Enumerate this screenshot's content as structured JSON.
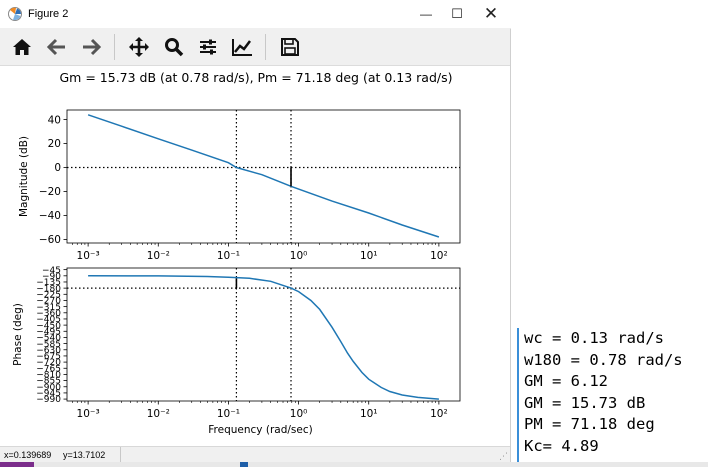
{
  "window": {
    "title": "Figure 2",
    "controls": {
      "minimize": "—",
      "maximize": "☐",
      "close": "✕"
    }
  },
  "toolbar": {
    "buttons": [
      {
        "name": "home",
        "icon": "home-icon"
      },
      {
        "name": "back",
        "icon": "arrow-left-icon"
      },
      {
        "name": "forward",
        "icon": "arrow-right-icon"
      },
      {
        "name": "pan",
        "icon": "move-icon"
      },
      {
        "name": "zoom",
        "icon": "magnifier-icon"
      },
      {
        "name": "subplots",
        "icon": "sliders-icon"
      },
      {
        "name": "axes",
        "icon": "line-chart-icon"
      },
      {
        "name": "save",
        "icon": "floppy-disk-icon"
      }
    ]
  },
  "chart_data": [
    {
      "type": "line",
      "title": "Gm = 15.73 dB (at 0.78 rad/s), Pm = 71.18 deg (at 0.13 rad/s)",
      "xlabel": "",
      "ylabel": "Magnitude (dB)",
      "xscale": "log",
      "xlim": [
        0.0005,
        200
      ],
      "ylim": [
        -63,
        48
      ],
      "yticks": [
        "40",
        "20",
        "0",
        "−20",
        "−40",
        "−60"
      ],
      "ytick_values": [
        40,
        20,
        0,
        -20,
        -40,
        -60
      ],
      "xticks": [
        "10⁻³",
        "10⁻²",
        "10⁻¹",
        "10⁰",
        "10¹",
        "10²"
      ],
      "xtick_values": [
        0.001,
        0.01,
        0.1,
        1,
        10,
        100
      ],
      "color": "#1f77b4",
      "series": [
        {
          "x": [
            0.001,
            0.003,
            0.01,
            0.03,
            0.1,
            0.13,
            0.3,
            0.78,
            1,
            3,
            10,
            30,
            100
          ],
          "y": [
            44,
            34.5,
            24,
            14.5,
            4,
            0,
            -6,
            -15.7,
            -18,
            -28,
            -38,
            -48,
            -58
          ]
        }
      ],
      "ref_lines": {
        "h": [
          0
        ],
        "v": [
          0.13,
          0.78
        ]
      },
      "margin_marker": {
        "x": 0.78,
        "y1": 0,
        "y2": -15.73
      }
    },
    {
      "type": "line",
      "title": "",
      "xlabel": "Frequency (rad/sec)",
      "ylabel": "Phase (deg)",
      "xscale": "log",
      "xlim": [
        0.0005,
        200
      ],
      "ylim": [
        -1004,
        -33
      ],
      "yticks": [
        "−45",
        "−90",
        "−135",
        "−180",
        "−225",
        "−270",
        "−315",
        "−360",
        "−405",
        "−450",
        "−495",
        "−540",
        "−585",
        "−630",
        "−675",
        "−720",
        "−765",
        "−810",
        "−855",
        "−900",
        "−945",
        "−990"
      ],
      "ytick_values": [
        -45,
        -90,
        -135,
        -180,
        -225,
        -270,
        -315,
        -360,
        -405,
        -450,
        -495,
        -540,
        -585,
        -630,
        -675,
        -720,
        -765,
        -810,
        -855,
        -900,
        -945,
        -990
      ],
      "xticks": [
        "10⁻³",
        "10⁻²",
        "10⁻¹",
        "10⁰",
        "10¹",
        "10²"
      ],
      "xtick_values": [
        0.001,
        0.01,
        0.1,
        1,
        10,
        100
      ],
      "color": "#1f77b4",
      "series": [
        {
          "x": [
            0.001,
            0.01,
            0.05,
            0.1,
            0.2,
            0.4,
            0.78,
            1,
            1.5,
            2,
            3,
            4,
            5,
            6,
            8,
            10,
            15,
            20,
            30,
            50,
            100
          ],
          "y": [
            -90,
            -91,
            -95,
            -100,
            -108,
            -130,
            -180,
            -205,
            -270,
            -335,
            -465,
            -570,
            -655,
            -715,
            -795,
            -845,
            -905,
            -935,
            -960,
            -978,
            -990
          ]
        }
      ],
      "ref_lines": {
        "h": [
          -180
        ],
        "v": [
          0.13,
          0.78
        ]
      },
      "margin_marker": {
        "x": 0.13,
        "y1": -180,
        "y2": -108.82
      }
    }
  ],
  "status": {
    "x": "x=0.139689",
    "y": "y=13.7102"
  },
  "console": {
    "lines": [
      "wc = 0.13 rad/s",
      "w180 = 0.78 rad/s",
      "GM = 6.12",
      "GM = 15.73 dB",
      "PM = 71.18 deg",
      "Kc= 4.89"
    ]
  }
}
